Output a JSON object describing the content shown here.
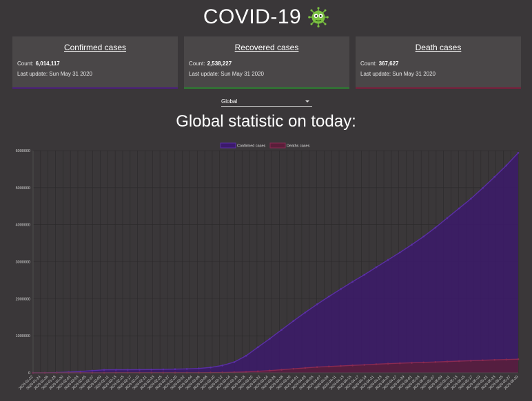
{
  "header": {
    "title": "COVID-19",
    "icon": "virus-icon",
    "icon_color": "#7cc242"
  },
  "cards": [
    {
      "title": "Confirmed cases",
      "count_label": "Count:",
      "count": "6,014,117",
      "update_label": "Last update:",
      "update": "Sun May 31 2020",
      "color": "#4b1f7a"
    },
    {
      "title": "Recovered cases",
      "count_label": "Count:",
      "count": "2,538,227",
      "update_label": "Last update:",
      "update": "Sun May 31 2020",
      "color": "#2e7d32"
    },
    {
      "title": "Death cases",
      "count_label": "Count:",
      "count": "367,627",
      "update_label": "Last update:",
      "update": "Sun May 31 2020",
      "color": "#7a1f3c"
    }
  ],
  "region_select": {
    "value": "Global"
  },
  "subtitle": "Global statistic on today:",
  "chart_data": {
    "type": "area",
    "legend": [
      "Confirmed cases",
      "Deaths cases"
    ],
    "legend_placement": "top-center",
    "grid": true,
    "ylim": [
      0,
      6000000
    ],
    "y_ticks": [
      "0",
      "1000000",
      "2000000",
      "3000000",
      "4000000",
      "5000000",
      "6000000"
    ],
    "x_start": "2020-01-22",
    "x_end": "2020-05-29",
    "x_tick_labels": [
      "2020-01-22",
      "2020-01-24",
      "2020-01-26",
      "2020-01-28",
      "2020-01-30",
      "2020-02-01",
      "2020-02-03",
      "2020-02-05",
      "2020-02-07",
      "2020-02-09",
      "2020-02-11",
      "2020-02-13",
      "2020-02-15",
      "2020-02-17",
      "2020-02-19",
      "2020-02-21",
      "2020-02-23",
      "2020-02-25",
      "2020-02-27",
      "2020-02-29",
      "2020-03-02",
      "2020-03-04",
      "2020-03-06",
      "2020-03-08",
      "2020-03-10",
      "2020-03-12",
      "2020-03-14",
      "2020-03-16",
      "2020-03-18",
      "2020-03-20",
      "2020-03-22",
      "2020-03-24",
      "2020-03-26",
      "2020-03-28",
      "2020-03-30",
      "2020-04-01",
      "2020-04-03",
      "2020-04-05",
      "2020-04-07",
      "2020-04-09",
      "2020-04-11",
      "2020-04-13",
      "2020-04-15",
      "2020-04-17",
      "2020-04-19",
      "2020-04-21",
      "2020-04-23",
      "2020-04-25",
      "2020-04-27",
      "2020-04-29",
      "2020-05-01",
      "2020-05-03",
      "2020-05-05",
      "2020-05-07",
      "2020-05-09",
      "2020-05-11",
      "2020-05-13",
      "2020-05-15",
      "2020-05-17",
      "2020-05-19",
      "2020-05-21",
      "2020-05-23",
      "2020-05-25",
      "2020-05-27",
      "2020-05-29"
    ],
    "series": [
      {
        "name": "Confirmed cases",
        "color": "#3c1a6b",
        "line_color": "#5a2ea6",
        "values": [
          555,
          2000,
          8000,
          20000,
          35000,
          60000,
          80000,
          82000,
          83000,
          85000,
          88000,
          92000,
          98000,
          105000,
          118000,
          145000,
          198000,
          290000,
          460000,
          690000,
          920000,
          1160000,
          1400000,
          1630000,
          1850000,
          2060000,
          2260000,
          2460000,
          2650000,
          2850000,
          3050000,
          3250000,
          3460000,
          3680000,
          3920000,
          4180000,
          4440000,
          4700000,
          4990000,
          5290000,
          5600000,
          5940000
        ]
      },
      {
        "name": "Deaths cases",
        "color": "#5a1e3a",
        "line_color": "#8a2a52",
        "values": [
          17,
          60,
          260,
          560,
          900,
          1300,
          1800,
          2700,
          2800,
          2900,
          3000,
          3100,
          3300,
          3600,
          4300,
          6000,
          9000,
          15000,
          25000,
          40000,
          60000,
          82000,
          108000,
          132000,
          155000,
          170000,
          185000,
          200000,
          215000,
          232000,
          247000,
          258000,
          270000,
          281000,
          292000,
          304000,
          316000,
          327000,
          339000,
          350000,
          358000,
          367000
        ]
      }
    ]
  }
}
